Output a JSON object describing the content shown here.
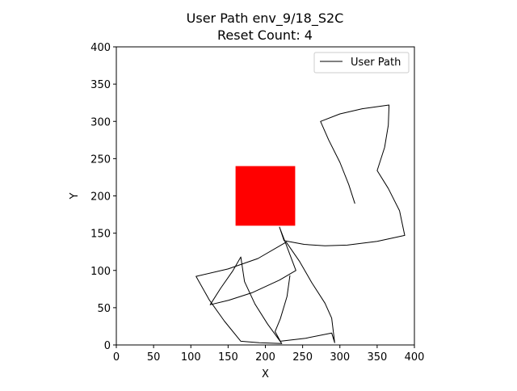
{
  "chart_data": {
    "type": "line",
    "title": "User Path env_9/18_S2C",
    "subtitle": "Reset Count: 4",
    "xlabel": "X",
    "ylabel": "Y",
    "xlim": [
      0,
      400
    ],
    "ylim": [
      0,
      400
    ],
    "xticks": [
      0,
      50,
      100,
      150,
      200,
      250,
      300,
      350,
      400
    ],
    "yticks": [
      0,
      50,
      100,
      150,
      200,
      250,
      300,
      350,
      400
    ],
    "grid": false,
    "legend": {
      "position": "top-right",
      "entries": [
        "User Path"
      ]
    },
    "obstacle": {
      "x": [
        160,
        240
      ],
      "y": [
        160,
        240
      ],
      "color": "#ff0000"
    },
    "series": [
      {
        "name": "User Path",
        "color": "#000000",
        "points": [
          [
            320,
            190
          ],
          [
            312,
            215
          ],
          [
            300,
            245
          ],
          [
            285,
            275
          ],
          [
            274,
            300
          ],
          [
            300,
            310
          ],
          [
            330,
            317
          ],
          [
            366,
            322
          ],
          [
            365,
            295
          ],
          [
            360,
            265
          ],
          [
            350,
            234
          ],
          [
            365,
            210
          ],
          [
            380,
            180
          ],
          [
            387,
            147
          ],
          [
            350,
            139
          ],
          [
            310,
            134
          ],
          [
            280,
            133
          ],
          [
            252,
            135
          ],
          [
            225,
            140
          ],
          [
            219,
            158
          ],
          [
            227,
            137
          ],
          [
            241,
            100
          ],
          [
            219,
            87
          ],
          [
            182,
            70
          ],
          [
            151,
            60
          ],
          [
            126,
            54
          ],
          [
            140,
            76
          ],
          [
            156,
            99
          ],
          [
            167,
            118
          ],
          [
            172,
            85
          ],
          [
            186,
            55
          ],
          [
            203,
            28
          ],
          [
            222,
            2
          ],
          [
            192,
            3
          ],
          [
            167,
            5
          ],
          [
            145,
            32
          ],
          [
            125,
            60
          ],
          [
            107,
            92
          ],
          [
            150,
            102
          ],
          [
            190,
            116
          ],
          [
            228,
            138
          ],
          [
            246,
            112
          ],
          [
            262,
            84
          ],
          [
            280,
            56
          ],
          [
            289,
            36
          ],
          [
            293,
            3
          ],
          [
            289,
            16
          ],
          [
            254,
            9
          ],
          [
            220,
            5
          ],
          [
            213,
            18
          ],
          [
            220,
            35
          ],
          [
            229,
            65
          ],
          [
            233,
            93
          ]
        ]
      }
    ]
  }
}
